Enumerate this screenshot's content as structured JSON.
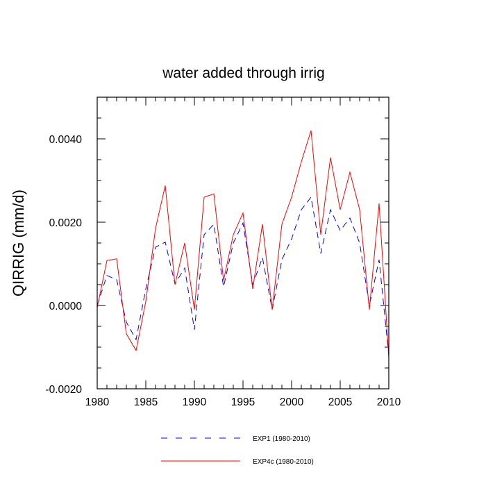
{
  "chart_data": {
    "type": "line",
    "title": "water added through irrig",
    "xlabel": "",
    "ylabel": "QIRRIG  (mm/d)",
    "xlim": [
      1980,
      2010
    ],
    "ylim": [
      -0.002,
      0.005
    ],
    "x_ticks": [
      1980,
      1985,
      1990,
      1995,
      2000,
      2005,
      2010
    ],
    "x_tick_labels": [
      "1980",
      "1985",
      "1990",
      "1995",
      "2000",
      "2005",
      "2010"
    ],
    "y_ticks": [
      -0.002,
      0.0,
      0.002,
      0.004
    ],
    "y_tick_labels": [
      "-0.0020",
      "0.0000",
      "0.0020",
      "0.0040"
    ],
    "x": [
      1980,
      1981,
      1982,
      1983,
      1984,
      1985,
      1986,
      1987,
      1988,
      1989,
      1990,
      1991,
      1992,
      1993,
      1994,
      1995,
      1996,
      1997,
      1998,
      1999,
      2000,
      2001,
      2002,
      2003,
      2004,
      2005,
      2006,
      2007,
      2008,
      2009,
      2010
    ],
    "series": [
      {
        "name": "EXP1 (1980-2010)",
        "color": "#0000ff",
        "style": "dashed",
        "values": [
          0.0,
          0.00072,
          0.00062,
          -0.0004,
          -0.00082,
          0.0004,
          0.0014,
          0.00152,
          0.00052,
          0.0009,
          -0.00058,
          0.0017,
          0.00195,
          0.00045,
          0.0015,
          0.00198,
          0.0005,
          0.00115,
          -0.0001,
          0.0011,
          0.0016,
          0.0023,
          0.0026,
          0.00125,
          0.0023,
          0.0018,
          0.0021,
          0.0015,
          0.0,
          0.0011,
          -0.0012
        ]
      },
      {
        "name": "EXP4c (1980-2010)",
        "color": "#ff0000",
        "style": "solid",
        "values": [
          -5e-05,
          0.00108,
          0.00112,
          -0.00068,
          -0.00108,
          0.0001,
          0.00185,
          0.00288,
          0.0005,
          0.0015,
          -0.0001,
          0.0026,
          0.00268,
          0.0006,
          0.0017,
          0.00222,
          0.0004,
          0.00195,
          -0.0001,
          0.00195,
          0.0026,
          0.00345,
          0.0042,
          0.0017,
          0.00355,
          0.0023,
          0.0032,
          0.0023,
          -0.0001,
          0.00245,
          -0.00125
        ]
      }
    ],
    "legend_position": "bottom"
  }
}
